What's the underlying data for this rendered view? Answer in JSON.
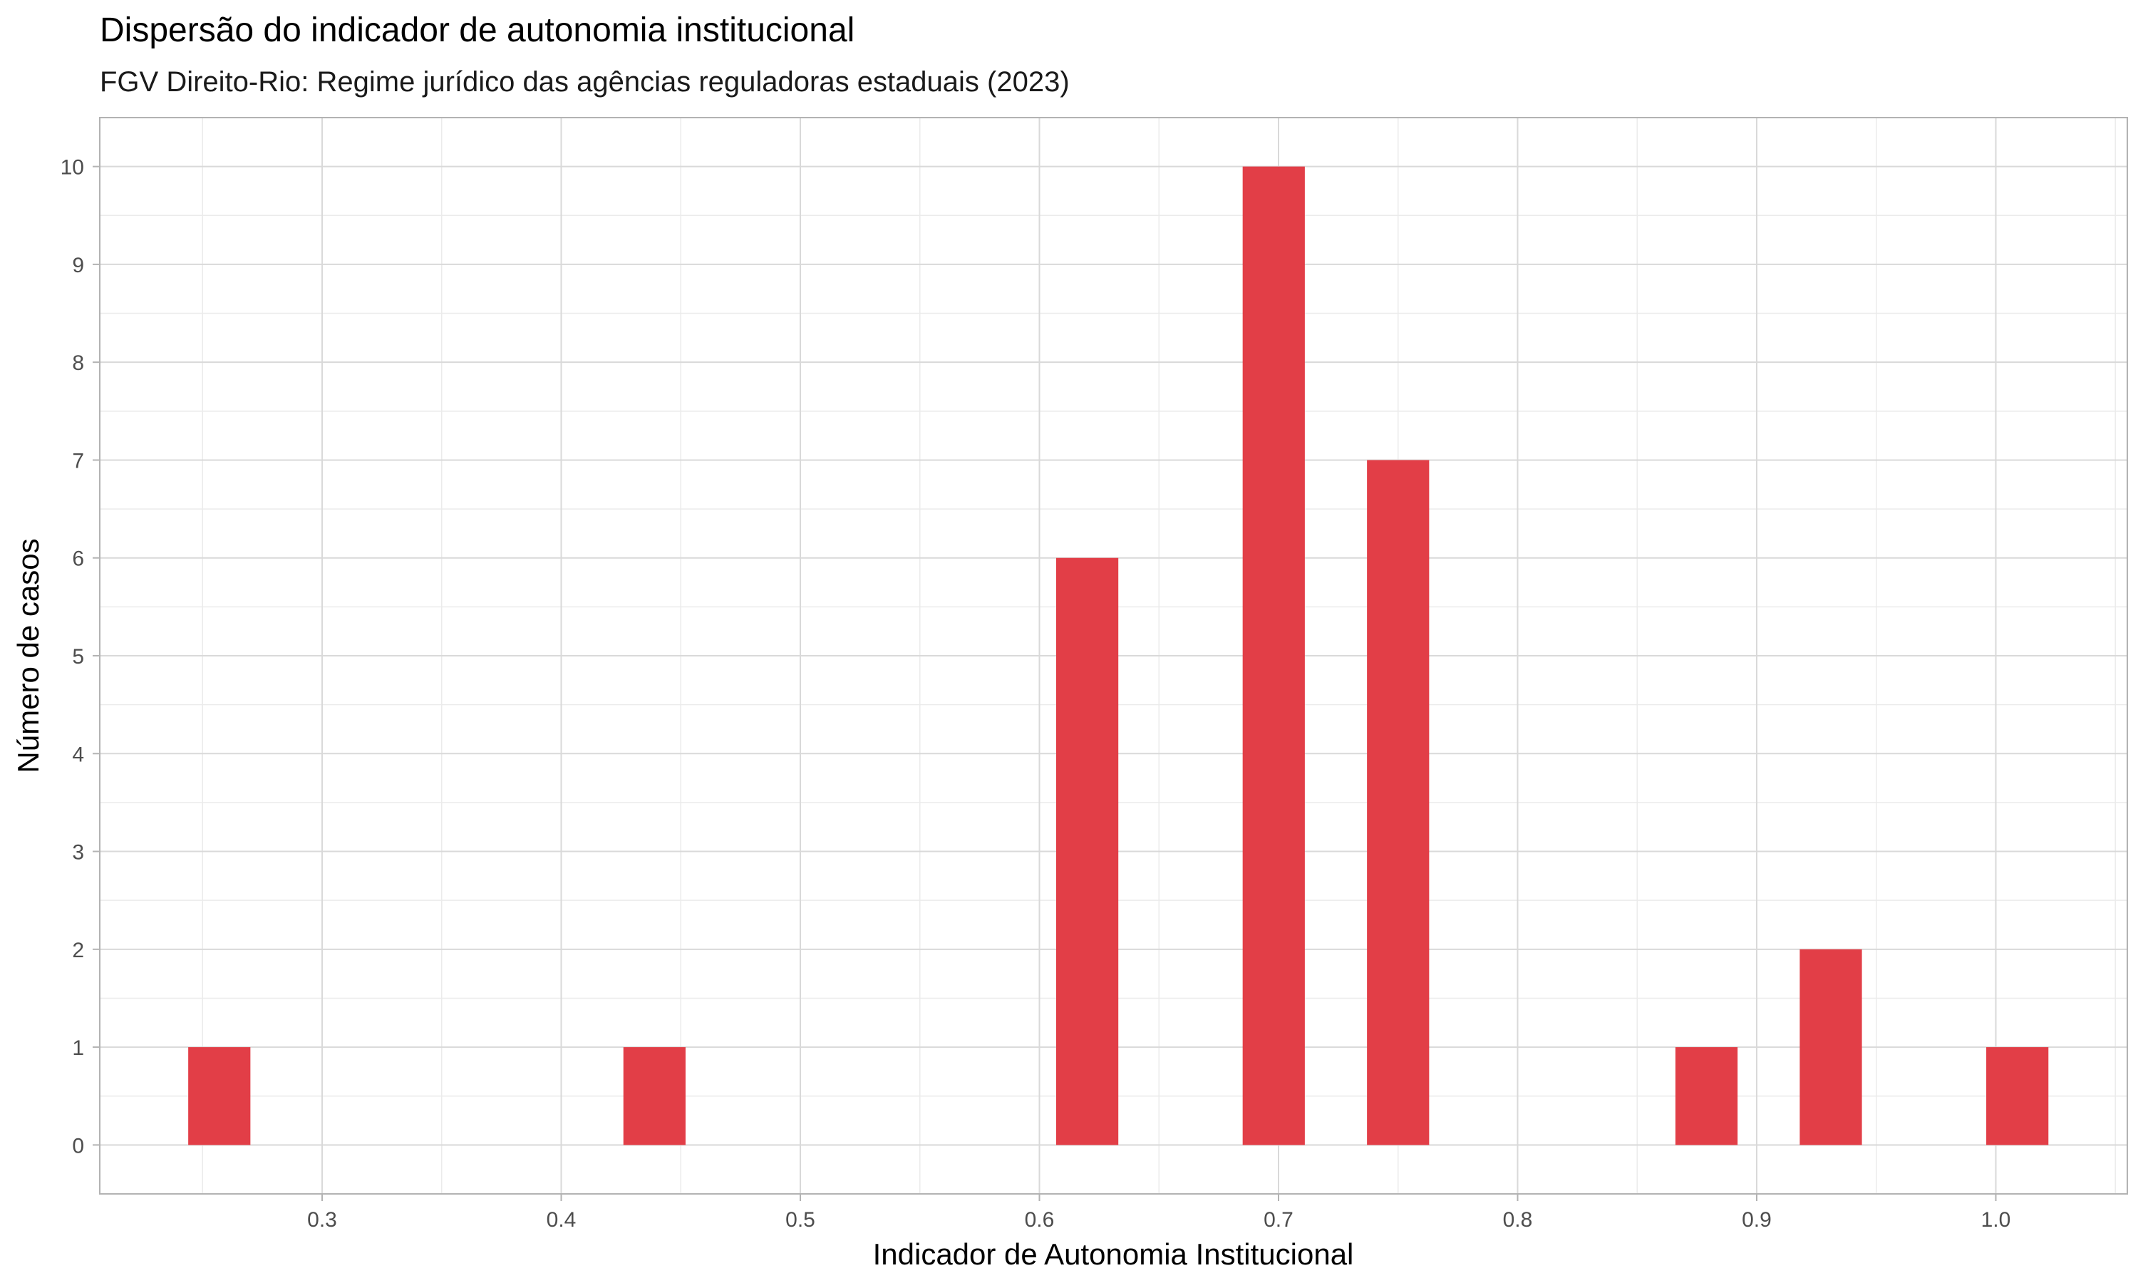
{
  "chart_data": {
    "type": "bar",
    "title": "Dispersão do indicador de autonomia institucional",
    "subtitle": "FGV Direito-Rio: Regime jurídico das agências reguladoras estaduais (2023)",
    "xlabel": "Indicador de Autonomia Institucional",
    "ylabel": "Número de casos",
    "x_ticks": [
      "0.3",
      "0.4",
      "0.5",
      "0.6",
      "0.7",
      "0.8",
      "0.9",
      "1.0"
    ],
    "y_ticks": [
      "0",
      "1",
      "2",
      "3",
      "4",
      "5",
      "6",
      "7",
      "8",
      "9",
      "10"
    ],
    "xlim": [
      0.207,
      1.055
    ],
    "ylim": [
      -0.5,
      10.5
    ],
    "bin_width": 0.026,
    "bars": [
      {
        "x": 0.257,
        "value": 1
      },
      {
        "x": 0.439,
        "value": 1
      },
      {
        "x": 0.62,
        "value": 6
      },
      {
        "x": 0.698,
        "value": 10
      },
      {
        "x": 0.75,
        "value": 7
      },
      {
        "x": 0.879,
        "value": 1
      },
      {
        "x": 0.931,
        "value": 2
      },
      {
        "x": 1.009,
        "value": 1
      }
    ],
    "bar_color": "#E23E47",
    "grid": true,
    "legend": "none"
  }
}
